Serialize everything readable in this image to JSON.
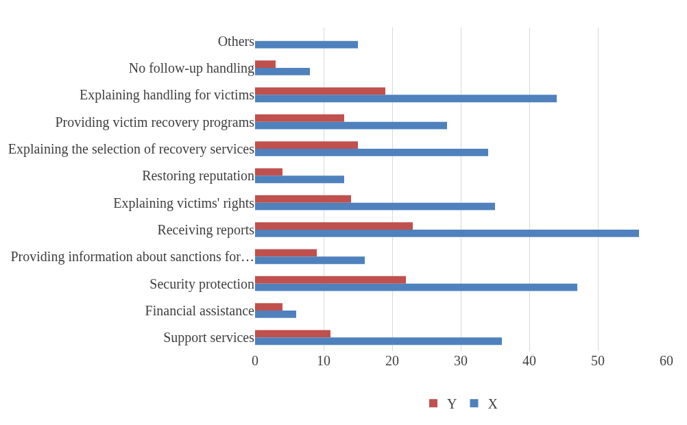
{
  "chart_data": {
    "type": "bar",
    "orientation": "horizontal",
    "categories": [
      "Others",
      "No follow-up handling",
      "Explaining handling for victims",
      "Providing victim recovery programs",
      "Explaining the selection of recovery services",
      "Restoring reputation",
      "Explaining victims' rights",
      "Receiving reports",
      "Providing information about sanctions for…",
      "Security protection",
      "Financial assistance",
      "Support services"
    ],
    "series": [
      {
        "name": "Y",
        "color": "#c0504d",
        "values": [
          null,
          3,
          19,
          13,
          15,
          4,
          14,
          23,
          9,
          22,
          4,
          11
        ]
      },
      {
        "name": "X",
        "color": "#4f81bd",
        "values": [
          15,
          8,
          44,
          28,
          34,
          13,
          35,
          56,
          16,
          47,
          6,
          36
        ]
      }
    ],
    "xlim": [
      0,
      60
    ],
    "xticks": [
      0,
      10,
      20,
      30,
      40,
      50,
      60
    ],
    "grid": "x",
    "legend": "bottom"
  }
}
